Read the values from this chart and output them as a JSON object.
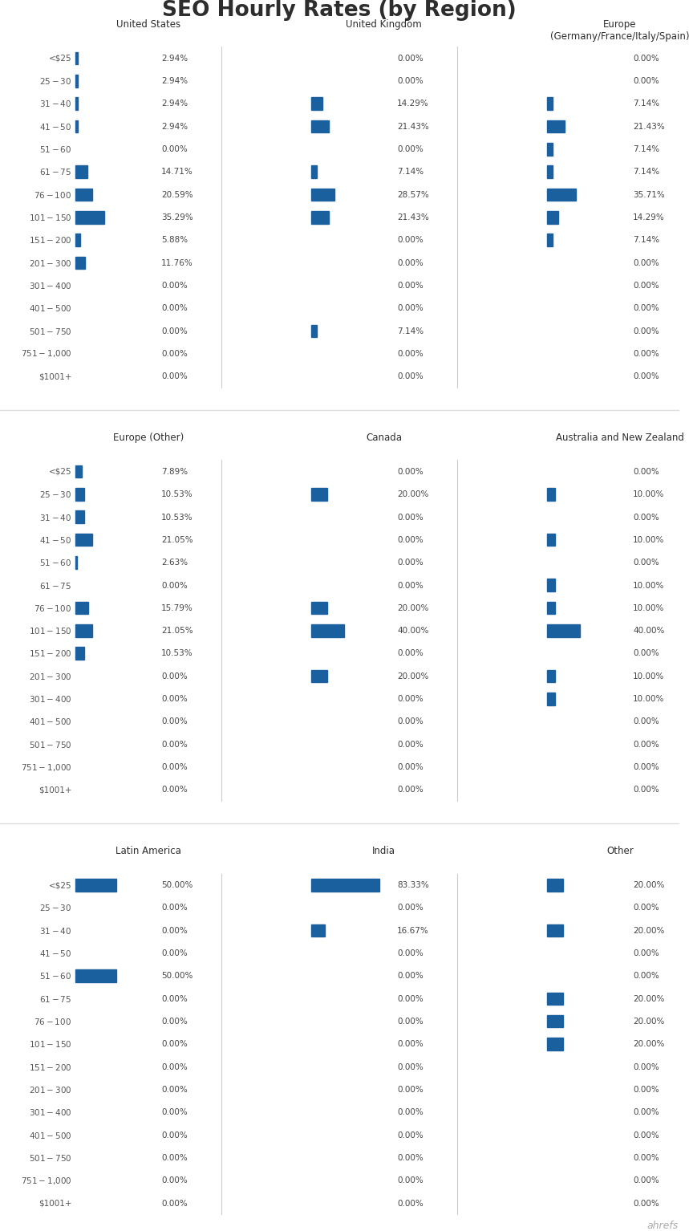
{
  "title": "SEO Hourly Rates (by Region)",
  "title_fontsize": 19,
  "bar_color": "#1a5f9e",
  "text_color": "#2d2d2d",
  "bg_color": "#ffffff",
  "label_color": "#555555",
  "value_color": "#444444",
  "categories": [
    "<$25",
    "$25-$30",
    "$31-$40",
    "$41-$50",
    "$51-$60",
    "$61-$75",
    "$76-$100",
    "$101-$150",
    "$151-$200",
    "$201-$300",
    "$301-$400",
    "$401-$500",
    "$501-$750",
    "$751-$1,000",
    "$1001+"
  ],
  "groups": [
    {
      "row": 0,
      "col": 0,
      "title": "United States",
      "values": [
        2.94,
        2.94,
        2.94,
        2.94,
        0.0,
        14.71,
        20.59,
        35.29,
        5.88,
        11.76,
        0.0,
        0.0,
        0.0,
        0.0,
        0.0
      ]
    },
    {
      "row": 0,
      "col": 1,
      "title": "United Kingdom",
      "values": [
        0.0,
        0.0,
        14.29,
        21.43,
        0.0,
        7.14,
        28.57,
        21.43,
        0.0,
        0.0,
        0.0,
        0.0,
        7.14,
        0.0,
        0.0
      ]
    },
    {
      "row": 0,
      "col": 2,
      "title": "Europe\n(Germany/France/Italy/Spain)",
      "values": [
        0.0,
        0.0,
        7.14,
        21.43,
        7.14,
        7.14,
        35.71,
        14.29,
        7.14,
        0.0,
        0.0,
        0.0,
        0.0,
        0.0,
        0.0
      ]
    },
    {
      "row": 1,
      "col": 0,
      "title": "Europe (Other)",
      "values": [
        7.89,
        10.53,
        10.53,
        21.05,
        2.63,
        0.0,
        15.79,
        21.05,
        10.53,
        0.0,
        0.0,
        0.0,
        0.0,
        0.0,
        0.0
      ]
    },
    {
      "row": 1,
      "col": 1,
      "title": "Canada",
      "values": [
        0.0,
        20.0,
        0.0,
        0.0,
        0.0,
        0.0,
        20.0,
        40.0,
        0.0,
        20.0,
        0.0,
        0.0,
        0.0,
        0.0,
        0.0
      ]
    },
    {
      "row": 1,
      "col": 2,
      "title": "Australia and New Zealand",
      "values": [
        0.0,
        10.0,
        0.0,
        10.0,
        0.0,
        10.0,
        10.0,
        40.0,
        0.0,
        10.0,
        10.0,
        0.0,
        0.0,
        0.0,
        0.0
      ]
    },
    {
      "row": 2,
      "col": 0,
      "title": "Latin America",
      "values": [
        50.0,
        0.0,
        0.0,
        0.0,
        50.0,
        0.0,
        0.0,
        0.0,
        0.0,
        0.0,
        0.0,
        0.0,
        0.0,
        0.0,
        0.0
      ]
    },
    {
      "row": 2,
      "col": 1,
      "title": "India",
      "values": [
        83.33,
        0.0,
        16.67,
        0.0,
        0.0,
        0.0,
        0.0,
        0.0,
        0.0,
        0.0,
        0.0,
        0.0,
        0.0,
        0.0,
        0.0
      ]
    },
    {
      "row": 2,
      "col": 2,
      "title": "Other",
      "values": [
        20.0,
        0.0,
        20.0,
        0.0,
        0.0,
        20.0,
        20.0,
        20.0,
        0.0,
        0.0,
        0.0,
        0.0,
        0.0,
        0.0,
        0.0
      ]
    }
  ],
  "ahrefs_text": "ahrefs",
  "separator_color": "#dddddd",
  "divider_color": "#cccccc"
}
